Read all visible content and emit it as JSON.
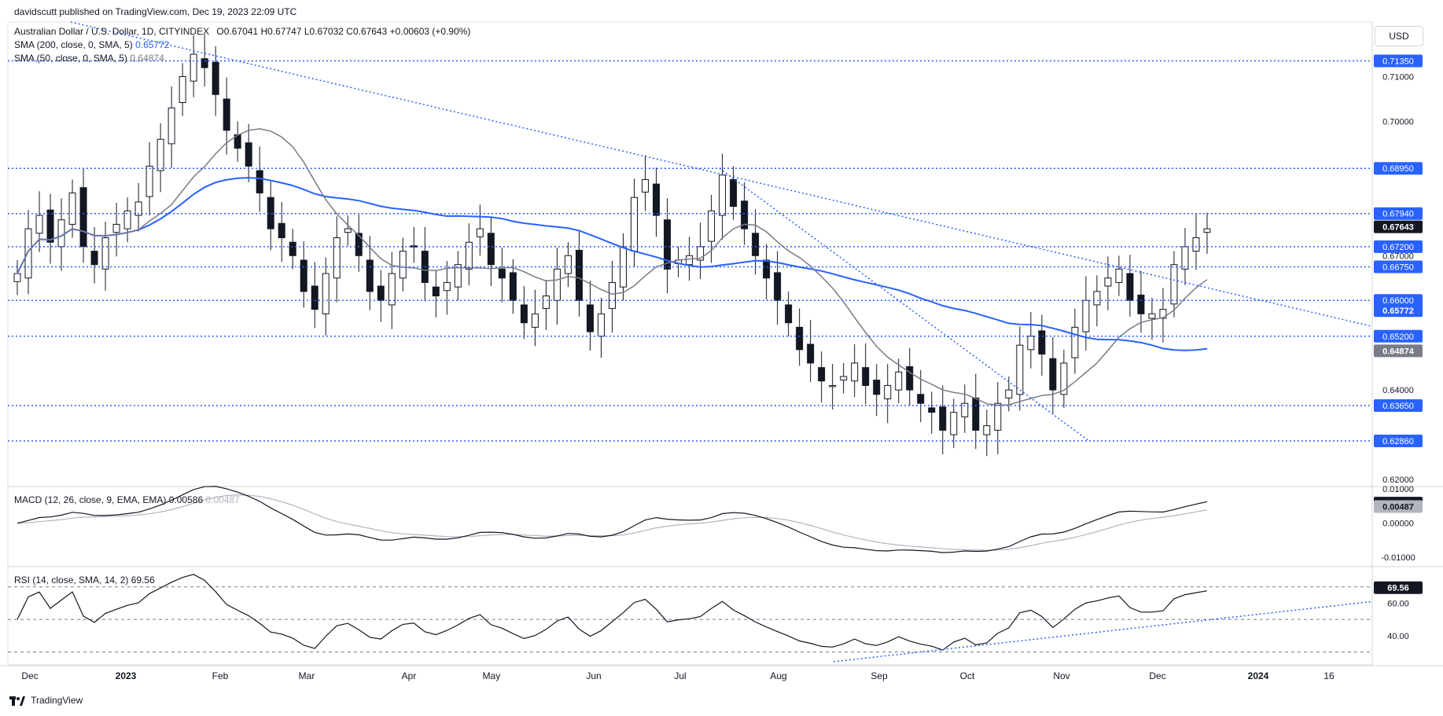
{
  "header": {
    "published": "davidscutt published on TradingView.com, Dec 19, 2023 22:09 UTC"
  },
  "currency": "USD",
  "legend": {
    "main": "Australian Dollar / U.S. Dollar, 1D, CITYINDEX",
    "o": "O0.67041",
    "h": "H0.67747",
    "l": "L0.67032",
    "c": "C0.67643",
    "chg": "+0.00603 (+0.90%)",
    "sma200_label": "SMA (200, close, 0, SMA, 5)",
    "sma200_val": "0.65772",
    "sma50_label": "SMA (50, close, 0, SMA, 5)",
    "sma50_val": "0.64874",
    "macd_label": "MACD (12, 26, close, 9, EMA, EMA)",
    "macd_val": "0.00586",
    "macd_sig": "0.00487",
    "rsi_label": "RSI (14, close, SMA, 14, 2)",
    "rsi_val": "69.56"
  },
  "footer": {
    "brand": "TradingView"
  },
  "colors": {
    "up": "#131722",
    "down": "#131722",
    "sma200": "#2962ff",
    "sma50": "#787b86",
    "level": "#2962ff"
  },
  "chart_data": {
    "type": "candlestick",
    "x_axis": {
      "labels": [
        "Dec",
        "2023",
        "Feb",
        "Mar",
        "Apr",
        "May",
        "Jun",
        "Jul",
        "Aug",
        "Sep",
        "Oct",
        "Nov",
        "Dec",
        "2024",
        "16"
      ]
    },
    "price": {
      "ylim": [
        0.6186,
        0.7222
      ],
      "ticks": [
        "0.71000",
        "0.70000",
        "0.67000",
        "0.64000",
        "0.62000"
      ],
      "levels": [
        "0.71350",
        "0.68950",
        "0.67940",
        "0.67200",
        "0.66750",
        "0.66000",
        "0.65200",
        "0.63650",
        "0.62860"
      ],
      "last_price": "0.67643",
      "sma200_last": "0.65772",
      "sma50_last": "0.64874",
      "closes": [
        0.666,
        0.676,
        0.679,
        0.673,
        0.678,
        0.684,
        0.672,
        0.668,
        0.674,
        0.677,
        0.68,
        0.682,
        0.69,
        0.696,
        0.703,
        0.71,
        0.715,
        0.712,
        0.706,
        0.698,
        0.694,
        0.69,
        0.684,
        0.676,
        0.674,
        0.67,
        0.662,
        0.658,
        0.666,
        0.674,
        0.676,
        0.67,
        0.662,
        0.66,
        0.666,
        0.671,
        0.672,
        0.664,
        0.661,
        0.664,
        0.668,
        0.673,
        0.676,
        0.668,
        0.665,
        0.66,
        0.655,
        0.657,
        0.661,
        0.667,
        0.67,
        0.66,
        0.653,
        0.657,
        0.664,
        0.672,
        0.683,
        0.687,
        0.679,
        0.667,
        0.669,
        0.67,
        0.672,
        0.68,
        0.688,
        0.681,
        0.676,
        0.67,
        0.665,
        0.66,
        0.655,
        0.649,
        0.646,
        0.642,
        0.641,
        0.643,
        0.646,
        0.641,
        0.639,
        0.641,
        0.644,
        0.64,
        0.637,
        0.635,
        0.631,
        0.635,
        0.637,
        0.631,
        0.632,
        0.637,
        0.64,
        0.65,
        0.652,
        0.648,
        0.64,
        0.646,
        0.654,
        0.66,
        0.662,
        0.665,
        0.667,
        0.66,
        0.657,
        0.657,
        0.658,
        0.668,
        0.672,
        0.674,
        0.676
      ]
    },
    "macd": {
      "ylim": [
        -0.0125,
        0.0105
      ],
      "ticks": [
        "0.01000",
        "0.00000",
        "-0.01000"
      ],
      "macd_last": "0.00586",
      "signal_last": "0.00487"
    },
    "rsi": {
      "ylim": [
        22,
        82
      ],
      "ticks": [
        "60.00",
        "40.00"
      ],
      "bands": [
        70,
        50,
        30
      ],
      "last": "69.56"
    }
  }
}
